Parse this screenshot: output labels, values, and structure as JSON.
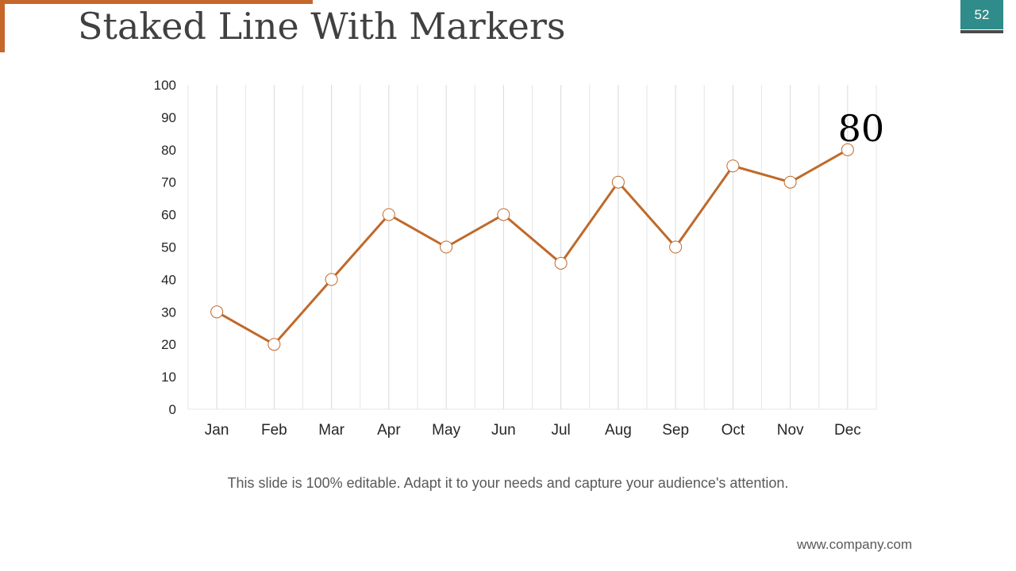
{
  "slide": {
    "title": "Staked Line With Markers",
    "page_number": "52",
    "caption": "This slide is 100% editable. Adapt it to your needs and capture your audience's attention.",
    "footer_url": "www.company.com"
  },
  "colors": {
    "accent": "#c5672b",
    "badge": "#2f8c8a",
    "line": "#c0692a"
  },
  "chart_data": {
    "type": "line",
    "categories": [
      "Jan",
      "Feb",
      "Mar",
      "Apr",
      "May",
      "Jun",
      "Jul",
      "Aug",
      "Sep",
      "Oct",
      "Nov",
      "Dec"
    ],
    "series": [
      {
        "values": [
          30,
          20,
          40,
          60,
          50,
          60,
          45,
          70,
          50,
          75,
          70,
          80
        ]
      }
    ],
    "ylim": [
      0,
      100
    ],
    "yticks": [
      "0",
      "10",
      "20",
      "30",
      "40",
      "50",
      "60",
      "70",
      "80",
      "90",
      "100"
    ],
    "grid": "vertical",
    "markers": "hollow circles",
    "annotation": {
      "text": "80",
      "category": "Dec"
    }
  }
}
